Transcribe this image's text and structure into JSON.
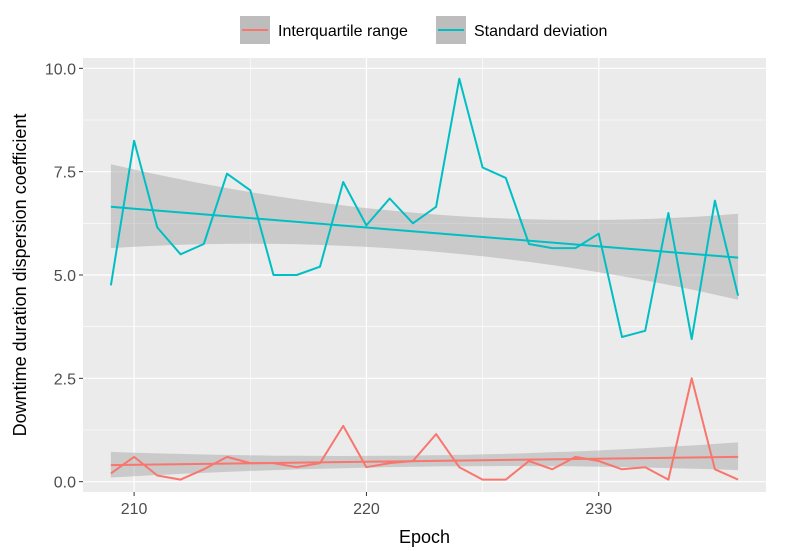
{
  "chart_data": {
    "type": "line",
    "title": "",
    "xlabel": "Epoch",
    "ylabel": "Downtime duration dispersion coefficient",
    "xlim": [
      207.8,
      237.2
    ],
    "ylim": [
      -0.25,
      10.25
    ],
    "xticks": [
      210,
      220,
      230
    ],
    "yticks": [
      0.0,
      2.5,
      5.0,
      7.5,
      10.0
    ],
    "ytick_labels": [
      "0.0",
      "2.5",
      "5.0",
      "7.5",
      "10.0"
    ],
    "grid": true,
    "legend_position": "top",
    "x": [
      209,
      210,
      211,
      212,
      213,
      214,
      215,
      216,
      217,
      218,
      219,
      220,
      221,
      222,
      223,
      224,
      225,
      226,
      227,
      228,
      229,
      230,
      231,
      232,
      233,
      234,
      235,
      236
    ],
    "series": [
      {
        "name": "Interquartile range",
        "color": "#F8766D",
        "values": [
          0.2,
          0.6,
          0.15,
          0.05,
          0.3,
          0.6,
          0.45,
          0.45,
          0.35,
          0.45,
          1.35,
          0.35,
          0.45,
          0.5,
          1.15,
          0.35,
          0.05,
          0.05,
          0.5,
          0.3,
          0.6,
          0.5,
          0.3,
          0.35,
          0.05,
          2.5,
          0.3,
          0.05
        ],
        "trend": [
          0.4,
          0.6
        ],
        "band_lower": [
          0.1,
          0.28
        ],
        "band_upper": [
          0.72,
          0.95
        ]
      },
      {
        "name": "Standard deviation",
        "color": "#00BFC4",
        "values": [
          4.75,
          8.25,
          6.15,
          5.5,
          5.75,
          7.45,
          7.05,
          5.0,
          5.0,
          5.2,
          7.25,
          6.2,
          6.85,
          6.25,
          6.65,
          9.75,
          7.6,
          7.35,
          5.75,
          5.65,
          5.65,
          6.0,
          3.5,
          3.65,
          6.5,
          3.45,
          6.8,
          4.5
        ],
        "trend": [
          6.65,
          5.42
        ],
        "band_lower": [
          5.65,
          4.4
        ],
        "band_upper": [
          7.68,
          6.48
        ]
      }
    ]
  }
}
